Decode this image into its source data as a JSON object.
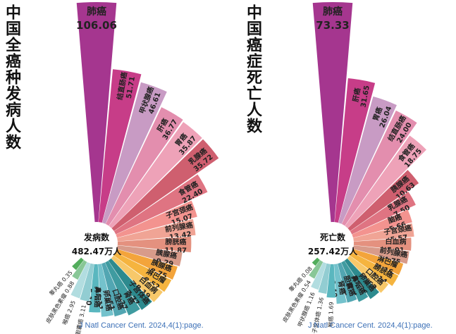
{
  "source_note": "J Natl Cancer Cent. 2024,4(1):page.",
  "chart_data": [
    {
      "type": "bar",
      "title": "中国全癌种发病人数",
      "center_label": "发病数",
      "center_value": "482.47万人",
      "categories": [
        "肺癌",
        "结直肠癌",
        "甲状腺癌",
        "肝癌",
        "胃癌",
        "乳腺癌",
        "食管癌",
        "子宫颈癌",
        "前列腺癌",
        "膀胱癌",
        "胰腺癌",
        "胰腺癌",
        "淋巴瘤",
        "白血病",
        "子宫体癌",
        "肾癌",
        "口腔癌",
        "卵巢癌",
        "鼻咽癌",
        "胆囊癌",
        "喉癌",
        "皮肤黑色素瘤",
        "睾丸癌"
      ],
      "values": [
        106.06,
        51.71,
        46.61,
        36.77,
        35.87,
        35.72,
        22.4,
        15.07,
        13.42,
        11.87,
        9.29,
        8.75,
        8.52,
        8.19,
        7.77,
        7.37,
        6.51,
        6.11,
        5.1,
        3.11,
        2.95,
        0.88,
        0.35
      ],
      "value_labels": [
        "106.06",
        "51.71",
        "46.61",
        "36.77",
        "35.87",
        "35.72",
        "22.40",
        "15.07",
        "13.42",
        "11.87",
        "9.29",
        "8.75",
        "8.52",
        "8.19",
        "7.77",
        "7.37",
        "6.51",
        "6.11",
        "5.10",
        "3.11",
        "2.95",
        "0.88",
        "0.35"
      ],
      "colors": [
        "#a5368f",
        "#c73d88",
        "#c89bc4",
        "#e38eae",
        "#eea2b8",
        "#cf5f6f",
        "#df7482",
        "#f3938f",
        "#f0a495",
        "#e4917f",
        "#d89b8a",
        "#f3a43b",
        "#f5b43f",
        "#f7c86a",
        "#2d8a8e",
        "#3f9ba0",
        "#52a6b2",
        "#74c2cc",
        "#5ab7bf",
        "#92cdd2",
        "#b2dde0",
        "#88c797",
        "#52ad5c"
      ]
    },
    {
      "type": "bar",
      "title": "中国癌症死亡人数",
      "center_label": "死亡数",
      "center_value": "257.42万人",
      "categories": [
        "肺癌",
        "肝癌",
        "胃癌",
        "结直肠癌",
        "食管癌",
        "胰腺癌",
        "乳腺癌",
        "脑癌",
        "子宫颈癌",
        "白血病",
        "前列腺癌",
        "淋巴瘤",
        "膀胱癌",
        "口腔癌",
        "卵巢癌",
        "鼻咽癌",
        "胆囊癌",
        "肾癌",
        "喉癌",
        "子宫体癌",
        "甲状腺癌",
        "皮肤黑色素瘤",
        "睾丸癌"
      ],
      "values": [
        73.33,
        31.65,
        26.04,
        24.0,
        18.75,
        10.63,
        7.5,
        5.66,
        5.57,
        5.01,
        4.75,
        4.16,
        4.14,
        3.52,
        3.26,
        2.84,
        2.45,
        2.4,
        1.69,
        1.36,
        1.16,
        0.54,
        0.08
      ],
      "value_labels": [
        "73.33",
        "31.65",
        "26.04",
        "24.00",
        "18.75",
        "10.63",
        "7.50",
        "5.66",
        "5.57",
        "5.01",
        "4.75",
        "4.16",
        "4.14",
        "3.52",
        "3.26",
        "2.84",
        "2.45",
        "2.40",
        "1.69",
        "1.36",
        "1.16",
        "0.54",
        "0.08"
      ],
      "colors": [
        "#a5368f",
        "#c73d88",
        "#c89bc4",
        "#e38eae",
        "#eea2b8",
        "#cf5f6f",
        "#df7482",
        "#f3938f",
        "#f0a495",
        "#e4917f",
        "#d89b8a",
        "#f3a43b",
        "#f5b43f",
        "#f7c86a",
        "#2d8a8e",
        "#3f9ba0",
        "#52a6b2",
        "#74c2cc",
        "#5ab7bf",
        "#92cdd2",
        "#b2dde0",
        "#88c797",
        "#52ad5c"
      ]
    }
  ]
}
